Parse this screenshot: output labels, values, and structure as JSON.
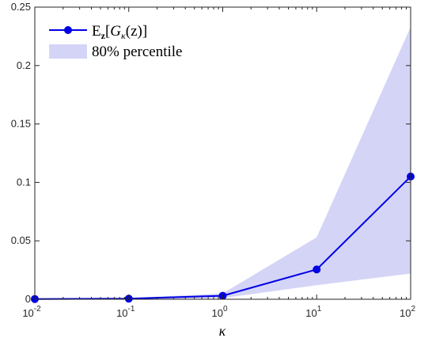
{
  "chart_data": {
    "type": "line",
    "xscale": "log",
    "xlim": [
      0.01,
      100
    ],
    "ylim": [
      0,
      0.25
    ],
    "xticks": [
      {
        "base": "10",
        "exp": "-2"
      },
      {
        "base": "10",
        "exp": "-1"
      },
      {
        "base": "10",
        "exp": "0"
      },
      {
        "base": "10",
        "exp": "1"
      },
      {
        "base": "10",
        "exp": "2"
      }
    ],
    "xtick_values": [
      0.01,
      0.1,
      1,
      10,
      100
    ],
    "yticks": [
      "0",
      "0.05",
      "0.1",
      "0.15",
      "0.2",
      "0.25"
    ],
    "ytick_values": [
      0,
      0.05,
      0.1,
      0.15,
      0.2,
      0.25
    ],
    "xlabel": "κ",
    "ylabel": "",
    "grid": false,
    "legend_position": "top-left",
    "legend": {
      "mean_label": {
        "E": "E",
        "sub": "z",
        "G": "G",
        "gsub": "κ",
        "arg": "(z)"
      },
      "band_label": "80% percentile"
    },
    "series": [
      {
        "x": [
          0.01,
          0.1,
          1,
          10,
          100
        ],
        "y": [
          0.0002,
          0.0005,
          0.003,
          0.0255,
          0.105
        ],
        "color": "#0000e6"
      }
    ],
    "band": {
      "x": [
        0.01,
        0.1,
        1,
        10,
        100
      ],
      "lower": [
        0.0,
        0.0,
        0.001,
        0.012,
        0.022
      ],
      "upper": [
        0.0005,
        0.001,
        0.005,
        0.053,
        0.233
      ],
      "color": "#d4d4f7"
    }
  }
}
